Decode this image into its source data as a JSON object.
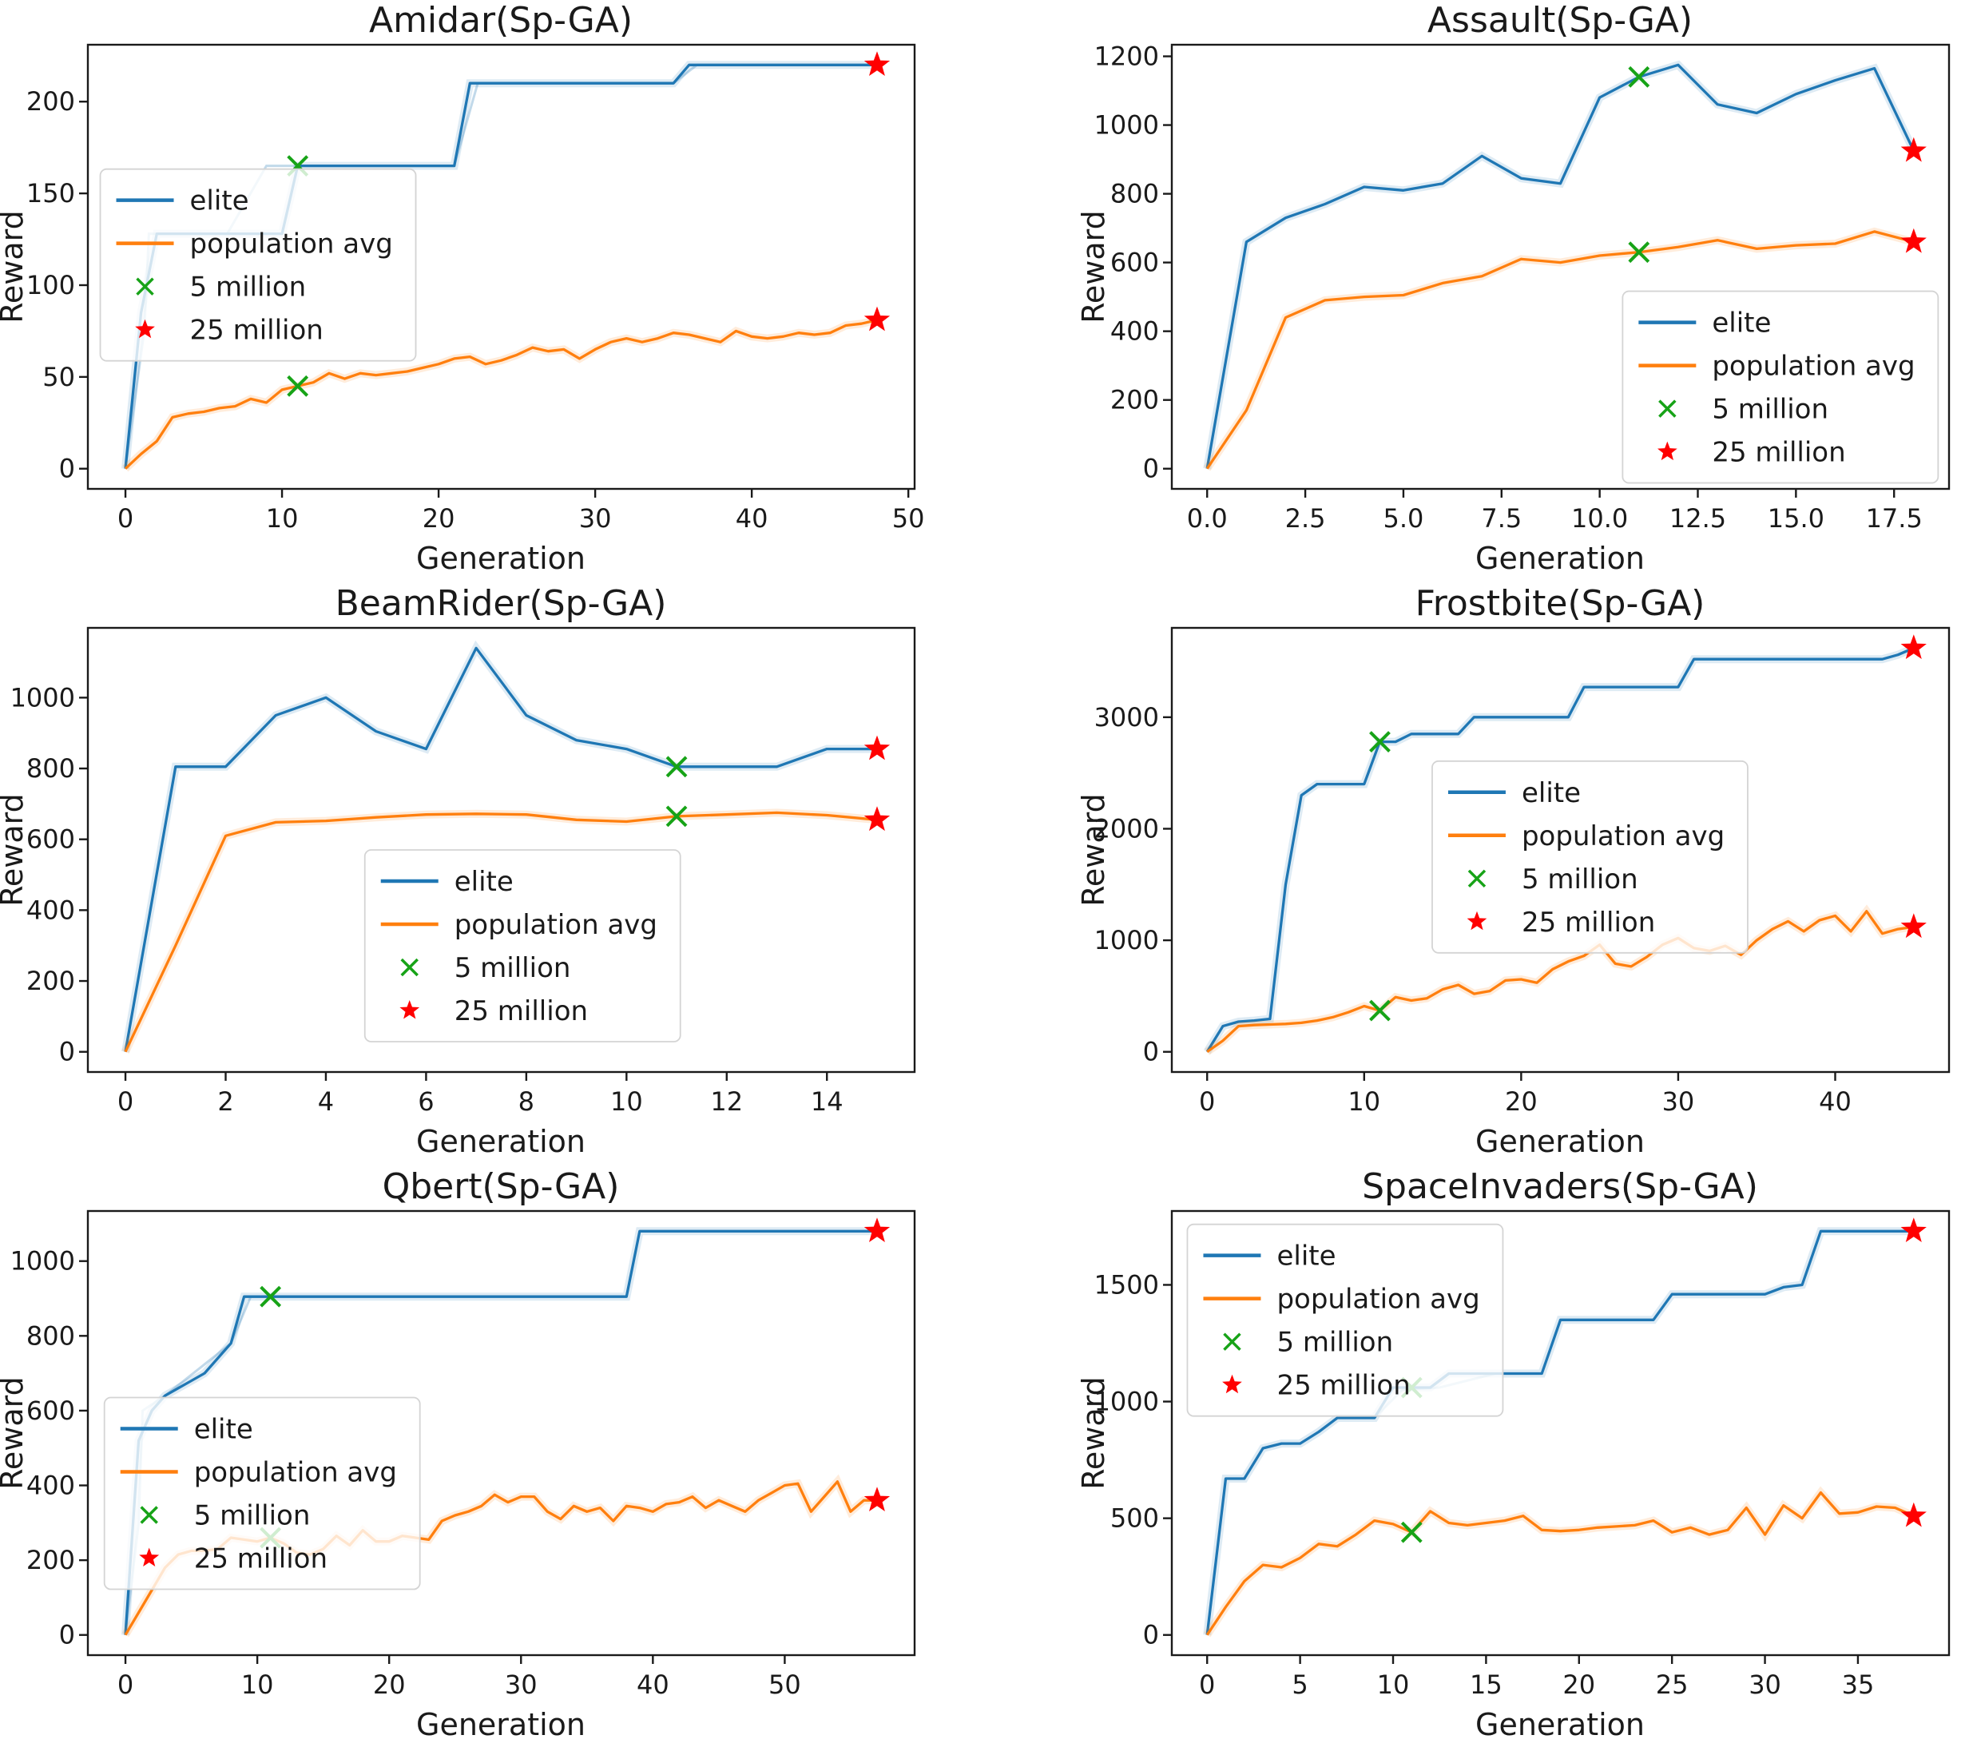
{
  "figure": {
    "background": "#ffffff"
  },
  "colors": {
    "elite": "#1f77b4",
    "population_avg": "#ff7f0e",
    "marker_5m": "#17a317",
    "marker_25m": "#ff0000",
    "frame": "#1a1a1a",
    "text": "#1a1a1a",
    "legend_border": "#d4d4d4",
    "legend_fill": "#ffffff"
  },
  "legend_labels": [
    "elite",
    "population avg",
    "5 million",
    "25 million"
  ],
  "chart_data": [
    {
      "type": "line",
      "title": "Amidar(Sp-GA)",
      "xlabel": "Generation",
      "ylabel": "Reward",
      "xlim": [
        -2.4,
        50.4
      ],
      "ylim": [
        -11,
        231
      ],
      "xtick_vals": [
        0,
        10,
        20,
        30,
        40,
        50
      ],
      "xtick_labels": [
        "0",
        "10",
        "20",
        "30",
        "40",
        "50"
      ],
      "ytick_vals": [
        0,
        50,
        100,
        150,
        200
      ],
      "ytick_labels": [
        "0",
        "50",
        "100",
        "150",
        "200"
      ],
      "legend_pos": {
        "x": 0.015,
        "y": 0.28
      },
      "series": [
        {
          "name": "elite",
          "color_key": "elite",
          "values": [
            0,
            85,
            128,
            128,
            128,
            128,
            128,
            128,
            128,
            128,
            128,
            165,
            165,
            165,
            165,
            165,
            165,
            165,
            165,
            165,
            165,
            165,
            210,
            210,
            210,
            210,
            210,
            210,
            210,
            210,
            210,
            210,
            210,
            210,
            210,
            210,
            220,
            220,
            220,
            220,
            220,
            220,
            220,
            220,
            220,
            220,
            220,
            220,
            220
          ]
        },
        {
          "name": "population avg",
          "color_key": "population_avg",
          "values": [
            0,
            8,
            15,
            28,
            30,
            31,
            33,
            34,
            38,
            36,
            43,
            45,
            47,
            52,
            49,
            52,
            51,
            52,
            53,
            55,
            57,
            60,
            61,
            57,
            59,
            62,
            66,
            64,
            65,
            60,
            65,
            69,
            71,
            69,
            71,
            74,
            73,
            71,
            69,
            75,
            72,
            71,
            72,
            74,
            73,
            74,
            78,
            79,
            81
          ]
        }
      ],
      "shadow_line": [
        [
          0,
          0
        ],
        [
          1.2,
          75
        ],
        [
          1.5,
          128
        ],
        [
          6.5,
          128
        ],
        [
          9,
          165
        ],
        [
          21,
          165
        ],
        [
          22.5,
          210
        ],
        [
          35,
          210
        ],
        [
          36.5,
          220
        ],
        [
          48,
          220
        ]
      ],
      "markers": [
        {
          "label": "5 million",
          "series": "elite",
          "x": 11,
          "y": 165
        },
        {
          "label": "5 million",
          "series": "population avg",
          "x": 11,
          "y": 45
        },
        {
          "label": "25 million",
          "series": "elite",
          "x": 48,
          "y": 220
        },
        {
          "label": "25 million",
          "series": "population avg",
          "x": 48,
          "y": 81
        }
      ]
    },
    {
      "type": "line",
      "title": "Assault(Sp-GA)",
      "xlabel": "Generation",
      "ylabel": "Reward",
      "xlim": [
        -0.9,
        18.9
      ],
      "ylim": [
        -58.75,
        1233.75
      ],
      "xtick_vals": [
        0,
        2.5,
        5,
        7.5,
        10,
        12.5,
        15,
        17.5
      ],
      "xtick_labels": [
        "0.0",
        "2.5",
        "5.0",
        "7.5",
        "10.0",
        "12.5",
        "15.0",
        "17.5"
      ],
      "ytick_vals": [
        0,
        200,
        400,
        600,
        800,
        1000,
        1200
      ],
      "ytick_labels": [
        "0",
        "200",
        "400",
        "600",
        "800",
        "1000",
        "1200"
      ],
      "legend_pos": {
        "x": 0.58,
        "y": 0.555
      },
      "series": [
        {
          "name": "elite",
          "color_key": "elite",
          "values": [
            0,
            660,
            730,
            770,
            820,
            810,
            830,
            910,
            845,
            830,
            1080,
            1140,
            1175,
            1060,
            1035,
            1090,
            1130,
            1165,
            925
          ]
        },
        {
          "name": "population avg",
          "color_key": "population_avg",
          "values": [
            0,
            170,
            440,
            490,
            500,
            505,
            540,
            560,
            610,
            600,
            620,
            630,
            645,
            665,
            640,
            650,
            655,
            690,
            660
          ]
        }
      ],
      "markers": [
        {
          "label": "5 million",
          "series": "elite",
          "x": 11,
          "y": 1140
        },
        {
          "label": "5 million",
          "series": "population avg",
          "x": 11,
          "y": 630
        },
        {
          "label": "25 million",
          "series": "elite",
          "x": 18,
          "y": 925
        },
        {
          "label": "25 million",
          "series": "population avg",
          "x": 18,
          "y": 660
        }
      ]
    },
    {
      "type": "line",
      "title": "BeamRider(Sp-GA)",
      "xlabel": "Generation",
      "ylabel": "Reward",
      "xlim": [
        -0.75,
        15.75
      ],
      "ylim": [
        -57,
        1197
      ],
      "xtick_vals": [
        0,
        2,
        4,
        6,
        8,
        10,
        12,
        14
      ],
      "xtick_labels": [
        "0",
        "2",
        "4",
        "6",
        "8",
        "10",
        "12",
        "14"
      ],
      "ytick_vals": [
        0,
        200,
        400,
        600,
        800,
        1000
      ],
      "ytick_labels": [
        "0",
        "200",
        "400",
        "600",
        "800",
        "1000"
      ],
      "legend_pos": {
        "x": 0.335,
        "y": 0.5
      },
      "series": [
        {
          "name": "elite",
          "color_key": "elite",
          "values": [
            0,
            805,
            805,
            950,
            1000,
            905,
            855,
            1140,
            950,
            880,
            855,
            805,
            805,
            805,
            855,
            855
          ]
        },
        {
          "name": "population avg",
          "color_key": "population_avg",
          "values": [
            0,
            300,
            610,
            648,
            652,
            662,
            670,
            672,
            670,
            655,
            650,
            665,
            670,
            675,
            668,
            655
          ]
        }
      ],
      "markers": [
        {
          "label": "5 million",
          "series": "elite",
          "x": 11,
          "y": 805
        },
        {
          "label": "5 million",
          "series": "population avg",
          "x": 11,
          "y": 665
        },
        {
          "label": "25 million",
          "series": "elite",
          "x": 15,
          "y": 855
        },
        {
          "label": "25 million",
          "series": "population avg",
          "x": 15,
          "y": 655
        }
      ]
    },
    {
      "type": "line",
      "title": "Frostbite(Sp-GA)",
      "xlabel": "Generation",
      "ylabel": "Reward",
      "xlim": [
        -2.25,
        47.25
      ],
      "ylim": [
        -181,
        3801
      ],
      "xtick_vals": [
        0,
        10,
        20,
        30,
        40
      ],
      "xtick_labels": [
        "0",
        "10",
        "20",
        "30",
        "40"
      ],
      "ytick_vals": [
        0,
        1000,
        2000,
        3000
      ],
      "ytick_labels": [
        "0",
        "1000",
        "2000",
        "3000"
      ],
      "legend_pos": {
        "x": 0.335,
        "y": 0.3
      },
      "series": [
        {
          "name": "elite",
          "color_key": "elite",
          "values": [
            0,
            230,
            270,
            280,
            295,
            1500,
            2300,
            2400,
            2400,
            2400,
            2400,
            2780,
            2780,
            2850,
            2850,
            2850,
            2850,
            3000,
            3000,
            3000,
            3000,
            3000,
            3000,
            3000,
            3270,
            3270,
            3270,
            3270,
            3270,
            3270,
            3270,
            3520,
            3520,
            3520,
            3520,
            3520,
            3520,
            3520,
            3520,
            3520,
            3520,
            3520,
            3520,
            3520,
            3560,
            3620
          ]
        },
        {
          "name": "population avg",
          "color_key": "population_avg",
          "values": [
            0,
            100,
            230,
            240,
            245,
            250,
            260,
            280,
            310,
            355,
            410,
            370,
            490,
            460,
            480,
            560,
            600,
            520,
            545,
            640,
            650,
            620,
            740,
            810,
            860,
            960,
            790,
            765,
            850,
            960,
            1020,
            930,
            905,
            950,
            870,
            1000,
            1100,
            1170,
            1080,
            1180,
            1220,
            1080,
            1260,
            1060,
            1100,
            1120
          ]
        }
      ],
      "markers": [
        {
          "label": "5 million",
          "series": "elite",
          "x": 11,
          "y": 2780
        },
        {
          "label": "5 million",
          "series": "population avg",
          "x": 11,
          "y": 370
        },
        {
          "label": "25 million",
          "series": "elite",
          "x": 45,
          "y": 3620
        },
        {
          "label": "25 million",
          "series": "population avg",
          "x": 45,
          "y": 1120
        }
      ]
    },
    {
      "type": "line",
      "title": "Qbert(Sp-GA)",
      "xlabel": "Generation",
      "ylabel": "Reward",
      "xlim": [
        -2.85,
        59.85
      ],
      "ylim": [
        -54,
        1134
      ],
      "xtick_vals": [
        0,
        10,
        20,
        30,
        40,
        50
      ],
      "xtick_labels": [
        "0",
        "10",
        "20",
        "30",
        "40",
        "50"
      ],
      "ytick_vals": [
        0,
        200,
        400,
        600,
        800,
        1000
      ],
      "ytick_labels": [
        "0",
        "200",
        "400",
        "600",
        "800",
        "1000"
      ],
      "legend_pos": {
        "x": 0.02,
        "y": 0.42
      },
      "series": [
        {
          "name": "elite",
          "color_key": "elite",
          "values": [
            0,
            520,
            600,
            640,
            660,
            680,
            700,
            740,
            780,
            905,
            905,
            905,
            905,
            905,
            905,
            905,
            905,
            905,
            905,
            905,
            905,
            905,
            905,
            905,
            905,
            905,
            905,
            905,
            905,
            905,
            905,
            905,
            905,
            905,
            905,
            905,
            905,
            905,
            905,
            1080,
            1080,
            1080,
            1080,
            1080,
            1080,
            1080,
            1080,
            1080,
            1080,
            1080,
            1080,
            1080,
            1080,
            1080,
            1080,
            1080,
            1080,
            1080
          ]
        },
        {
          "name": "population avg",
          "color_key": "population_avg",
          "values": [
            0,
            60,
            120,
            180,
            215,
            225,
            225,
            230,
            260,
            255,
            250,
            260,
            245,
            220,
            215,
            230,
            265,
            240,
            280,
            250,
            250,
            265,
            260,
            255,
            305,
            320,
            330,
            345,
            375,
            355,
            370,
            370,
            330,
            310,
            345,
            330,
            340,
            305,
            345,
            340,
            330,
            350,
            355,
            370,
            340,
            360,
            345,
            330,
            360,
            380,
            400,
            405,
            330,
            370,
            410,
            330,
            360,
            360
          ]
        }
      ],
      "shadow_line": [
        [
          0,
          0
        ],
        [
          1,
          300
        ],
        [
          1.3,
          600
        ],
        [
          3,
          640
        ],
        [
          8,
          780
        ],
        [
          9.5,
          905
        ],
        [
          11,
          905
        ]
      ],
      "markers": [
        {
          "label": "5 million",
          "series": "elite",
          "x": 11,
          "y": 905
        },
        {
          "label": "5 million",
          "series": "population avg",
          "x": 11,
          "y": 260
        },
        {
          "label": "25 million",
          "series": "elite",
          "x": 57,
          "y": 1080
        },
        {
          "label": "25 million",
          "series": "population avg",
          "x": 57,
          "y": 360
        }
      ]
    },
    {
      "type": "line",
      "title": "SpaceInvaders(Sp-GA)",
      "xlabel": "Generation",
      "ylabel": "Reward",
      "xlim": [
        -1.9,
        39.9
      ],
      "ylim": [
        -86.5,
        1816.5
      ],
      "xtick_vals": [
        0,
        5,
        10,
        15,
        20,
        25,
        30,
        35
      ],
      "xtick_labels": [
        "0",
        "5",
        "10",
        "15",
        "20",
        "25",
        "30",
        "35"
      ],
      "ytick_vals": [
        0,
        500,
        1000,
        1500
      ],
      "ytick_labels": [
        "0",
        "500",
        "1000",
        "1500"
      ],
      "legend_pos": {
        "x": 0.02,
        "y": 0.03
      },
      "series": [
        {
          "name": "elite",
          "color_key": "elite",
          "values": [
            0,
            670,
            670,
            800,
            820,
            820,
            870,
            930,
            930,
            930,
            1060,
            1060,
            1060,
            1120,
            1120,
            1120,
            1120,
            1120,
            1120,
            1350,
            1350,
            1350,
            1350,
            1350,
            1350,
            1460,
            1460,
            1460,
            1460,
            1460,
            1460,
            1490,
            1500,
            1730,
            1730,
            1730,
            1730,
            1730,
            1730
          ]
        },
        {
          "name": "population avg",
          "color_key": "population_avg",
          "values": [
            0,
            120,
            230,
            300,
            290,
            330,
            390,
            380,
            430,
            490,
            475,
            440,
            530,
            480,
            470,
            480,
            490,
            510,
            450,
            445,
            450,
            460,
            465,
            470,
            490,
            440,
            460,
            430,
            450,
            545,
            430,
            555,
            500,
            610,
            520,
            525,
            550,
            545,
            510
          ]
        }
      ],
      "shadow_line": [
        [
          9,
          930
        ],
        [
          10.5,
          1050
        ],
        [
          12.5,
          1060
        ],
        [
          15.5,
          1120
        ]
      ],
      "markers": [
        {
          "label": "5 million",
          "series": "elite",
          "x": 11,
          "y": 1060
        },
        {
          "label": "5 million",
          "series": "population avg",
          "x": 11,
          "y": 440
        },
        {
          "label": "25 million",
          "series": "elite",
          "x": 38,
          "y": 1730
        },
        {
          "label": "25 million",
          "series": "population avg",
          "x": 38,
          "y": 510
        }
      ]
    }
  ]
}
